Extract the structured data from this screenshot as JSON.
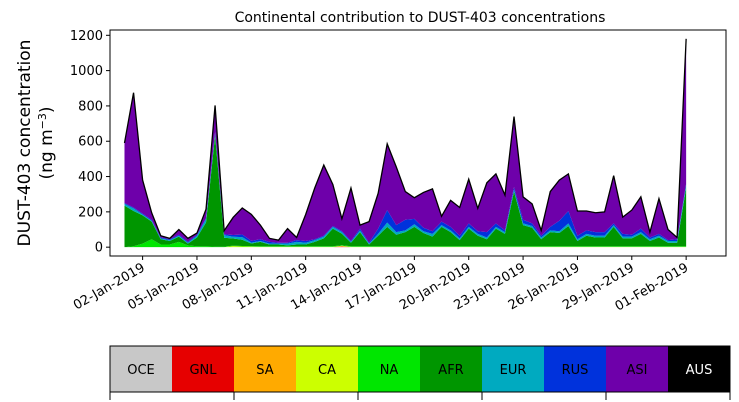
{
  "chart_data": {
    "type": "area",
    "stacked": true,
    "title": "Continental contribution to DUST-403 concentrations",
    "ylabel_line1": "DUST-403 concentration",
    "ylabel_line2_prefix": "(ng m",
    "ylabel_line2_sup": "−3",
    "ylabel_line2_suffix": ")",
    "ylim": [
      -50,
      1230
    ],
    "yticks": [
      0,
      200,
      400,
      600,
      800,
      1000,
      1200
    ],
    "ytick_labels": [
      "0",
      "200",
      "400",
      "600",
      "800",
      "1000",
      "1200"
    ],
    "xlim": [
      -0.8,
      33.2
    ],
    "xticks": [
      1,
      4,
      7,
      10,
      13,
      16,
      19,
      22,
      25,
      28,
      31
    ],
    "xtick_labels": [
      "02-Jan-2019",
      "05-Jan-2019",
      "08-Jan-2019",
      "11-Jan-2019",
      "14-Jan-2019",
      "17-Jan-2019",
      "20-Jan-2019",
      "23-Jan-2019",
      "26-Jan-2019",
      "29-Jan-2019",
      "01-Feb-2019"
    ],
    "x": [
      0,
      0.5,
      1,
      1.5,
      2,
      2.5,
      3,
      3.5,
      4,
      4.5,
      5,
      5.5,
      6,
      6.5,
      7,
      7.5,
      8,
      8.5,
      9,
      9.5,
      10,
      10.5,
      11,
      11.5,
      12,
      12.5,
      13,
      13.5,
      14,
      14.5,
      15,
      15.5,
      16,
      16.5,
      17,
      17.5,
      18,
      18.5,
      19,
      19.5,
      20,
      20.5,
      21,
      21.5,
      22,
      22.5,
      23,
      23.5,
      24,
      24.5,
      25,
      25.5,
      26,
      26.5,
      27,
      27.5,
      28,
      28.5,
      29,
      29.5,
      30,
      30.5,
      31
    ],
    "series": [
      {
        "name": "OCE",
        "color": "#c8c8c8",
        "values": [
          0,
          0,
          0,
          0,
          0,
          0,
          0,
          0,
          0,
          0,
          0,
          0,
          0,
          0,
          0,
          0,
          0,
          0,
          0,
          0,
          0,
          0,
          0,
          0,
          0,
          0,
          0,
          0,
          0,
          0,
          0,
          0,
          0,
          0,
          0,
          0,
          0,
          0,
          0,
          0,
          0,
          0,
          0,
          0,
          0,
          0,
          0,
          0,
          0,
          0,
          0,
          0,
          0,
          0,
          0,
          0,
          0,
          0,
          0,
          0,
          0,
          0,
          0
        ]
      },
      {
        "name": "GNL",
        "color": "#e60000",
        "values": [
          0,
          0,
          0,
          0,
          0,
          0,
          0,
          0,
          0,
          0,
          0,
          0,
          0,
          0,
          0,
          0,
          0,
          0,
          0,
          0,
          0,
          0,
          0,
          0,
          3,
          0,
          0,
          0,
          0,
          0,
          0,
          0,
          0,
          0,
          0,
          0,
          0,
          0,
          0,
          0,
          0,
          0,
          0,
          0,
          0,
          0,
          0,
          0,
          0,
          0,
          0,
          0,
          0,
          0,
          0,
          0,
          0,
          0,
          0,
          0,
          0,
          0,
          0
        ]
      },
      {
        "name": "SA",
        "color": "#ffaa00",
        "values": [
          0,
          0,
          0,
          0,
          0,
          0,
          0,
          0,
          0,
          0,
          0,
          0,
          0,
          0,
          0,
          0,
          0,
          0,
          0,
          0,
          0,
          0,
          0,
          0,
          3,
          0,
          0,
          0,
          0,
          0,
          0,
          0,
          0,
          0,
          0,
          0,
          0,
          0,
          0,
          0,
          0,
          0,
          0,
          0,
          0,
          0,
          0,
          0,
          0,
          0,
          0,
          0,
          0,
          0,
          0,
          0,
          0,
          0,
          0,
          0,
          0,
          0,
          0
        ]
      },
      {
        "name": "CA",
        "color": "#ccff00",
        "values": [
          0,
          0,
          0,
          0,
          0,
          0,
          0,
          0,
          0,
          0,
          0,
          0,
          6,
          4,
          3,
          2,
          2,
          2,
          2,
          2,
          2,
          2,
          2,
          2,
          2,
          2,
          2,
          2,
          2,
          2,
          2,
          2,
          2,
          2,
          2,
          2,
          2,
          2,
          2,
          2,
          2,
          2,
          2,
          2,
          2,
          2,
          2,
          2,
          2,
          2,
          2,
          2,
          2,
          2,
          2,
          2,
          2,
          2,
          2,
          2,
          2,
          2,
          2
        ]
      },
      {
        "name": "NA",
        "color": "#00e600",
        "values": [
          0,
          5,
          20,
          45,
          15,
          15,
          30,
          10,
          5,
          5,
          3,
          3,
          3,
          3,
          3,
          3,
          3,
          3,
          3,
          3,
          3,
          3,
          3,
          3,
          3,
          3,
          3,
          3,
          3,
          3,
          3,
          3,
          3,
          3,
          3,
          3,
          3,
          3,
          3,
          3,
          3,
          3,
          3,
          3,
          3,
          3,
          3,
          3,
          3,
          3,
          3,
          3,
          3,
          3,
          3,
          3,
          3,
          3,
          3,
          3,
          3,
          3,
          3
        ]
      },
      {
        "name": "AFR",
        "color": "#009600",
        "values": [
          235,
          200,
          160,
          100,
          30,
          20,
          30,
          10,
          50,
          135,
          630,
          50,
          40,
          35,
          15,
          25,
          10,
          10,
          5,
          10,
          10,
          25,
          45,
          100,
          65,
          20,
          80,
          10,
          60,
          110,
          65,
          80,
          110,
          75,
          55,
          110,
          80,
          35,
          100,
          60,
          40,
          100,
          70,
          310,
          120,
          105,
          40,
          80,
          75,
          115,
          30,
          60,
          50,
          50,
          110,
          45,
          45,
          70,
          30,
          50,
          20,
          20,
          330
        ]
      },
      {
        "name": "EUR",
        "color": "#00aac0",
        "values": [
          10,
          15,
          5,
          5,
          5,
          5,
          5,
          5,
          10,
          20,
          15,
          15,
          10,
          15,
          5,
          5,
          5,
          5,
          10,
          15,
          10,
          10,
          10,
          10,
          10,
          5,
          10,
          5,
          10,
          25,
          15,
          10,
          15,
          10,
          15,
          10,
          10,
          10,
          10,
          10,
          10,
          10,
          10,
          10,
          10,
          10,
          10,
          10,
          10,
          15,
          10,
          10,
          10,
          10,
          10,
          10,
          10,
          10,
          10,
          10,
          10,
          10,
          20
        ]
      },
      {
        "name": "RUS",
        "color": "#0032dc",
        "values": [
          5,
          5,
          5,
          5,
          5,
          5,
          5,
          5,
          5,
          5,
          5,
          5,
          10,
          15,
          10,
          10,
          10,
          5,
          5,
          10,
          10,
          5,
          5,
          5,
          5,
          5,
          10,
          5,
          30,
          70,
          40,
          60,
          30,
          20,
          15,
          20,
          20,
          15,
          20,
          15,
          30,
          20,
          10,
          15,
          20,
          15,
          10,
          20,
          60,
          70,
          20,
          20,
          20,
          20,
          10,
          15,
          10,
          20,
          10,
          10,
          5,
          10,
          5
        ]
      },
      {
        "name": "ASI",
        "color": "#6e00aa",
        "values": [
          340,
          650,
          190,
          40,
          10,
          5,
          30,
          20,
          10,
          50,
          150,
          20,
          100,
          150,
          150,
          80,
          20,
          15,
          80,
          15,
          150,
          290,
          400,
          235,
          70,
          300,
          20,
          120,
          200,
          375,
          330,
          160,
          120,
          200,
          240,
          30,
          150,
          160,
          250,
          130,
          280,
          280,
          200,
          400,
          130,
          110,
          30,
          200,
          230,
          210,
          140,
          110,
          110,
          115,
          270,
          95,
          140,
          180,
          30,
          200,
          60,
          10,
          820
        ]
      },
      {
        "name": "AUS",
        "color": "#000000",
        "values": [
          0,
          0,
          0,
          0,
          0,
          0,
          0,
          0,
          0,
          0,
          0,
          0,
          0,
          0,
          0,
          0,
          0,
          0,
          0,
          0,
          0,
          0,
          0,
          0,
          0,
          0,
          0,
          0,
          0,
          0,
          0,
          0,
          0,
          0,
          0,
          0,
          0,
          0,
          0,
          0,
          0,
          0,
          0,
          0,
          0,
          0,
          0,
          0,
          0,
          0,
          0,
          0,
          0,
          0,
          0,
          0,
          0,
          0,
          0,
          0,
          0,
          0,
          0
        ]
      }
    ],
    "legend_placement": "bottom",
    "legend_text_colors": {
      "OCE": "#000000",
      "GNL": "#000000",
      "SA": "#000000",
      "CA": "#000000",
      "NA": "#000000",
      "AFR": "#000000",
      "EUR": "#000000",
      "RUS": "#000000",
      "ASI": "#000000",
      "AUS": "#ffffff"
    },
    "total_line_color": "#000000",
    "grid": false
  }
}
